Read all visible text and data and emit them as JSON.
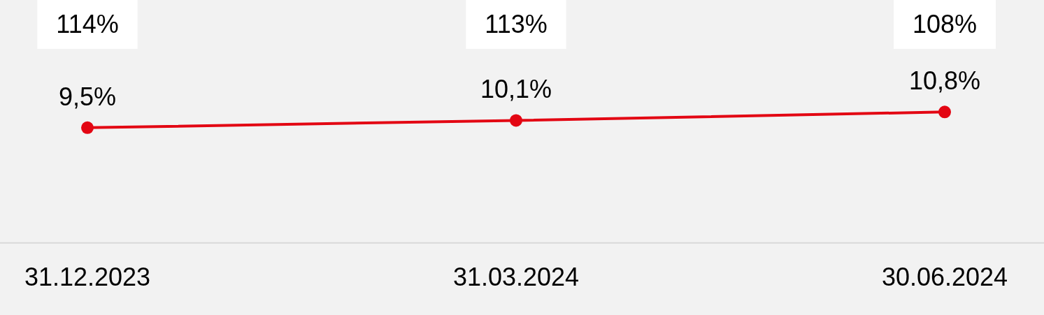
{
  "chart_data": {
    "type": "line",
    "categories": [
      "31.12.2023",
      "31.03.2024",
      "30.06.2024"
    ],
    "series": [
      {
        "color": "#e30613",
        "values": [
          9.5,
          10.1,
          10.8
        ],
        "value_labels": [
          "9,5%",
          "10,1%",
          "10,8%"
        ]
      }
    ],
    "marker": "circle",
    "line_style": "solid",
    "annotations": [
      "114%",
      "113%",
      "108%"
    ]
  }
}
